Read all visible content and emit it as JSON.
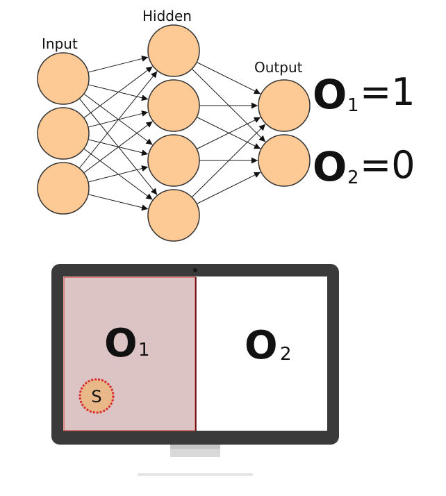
{
  "network": {
    "labels": {
      "input": "Input",
      "hidden": "Hidden",
      "output": "Output"
    },
    "layer_sizes": [
      3,
      4,
      2
    ]
  },
  "outputs": [
    {
      "symbol": "O",
      "sub": "1",
      "equals": "=1"
    },
    {
      "symbol": "O",
      "sub": "2",
      "equals": "=0"
    }
  ],
  "monitor": {
    "panel_left": {
      "symbol": "O",
      "sub": "1"
    },
    "panel_right": {
      "symbol": "O",
      "sub": "2"
    },
    "marker": "S"
  },
  "colors": {
    "neuron_fill": "#fdca95",
    "panel_left_fill": "#dcc4c4",
    "panel_left_border": "#cc3333",
    "monitor_frame": "#3a3a3a",
    "marker_fill": "#e9b888",
    "marker_border": "#d62f2f"
  }
}
